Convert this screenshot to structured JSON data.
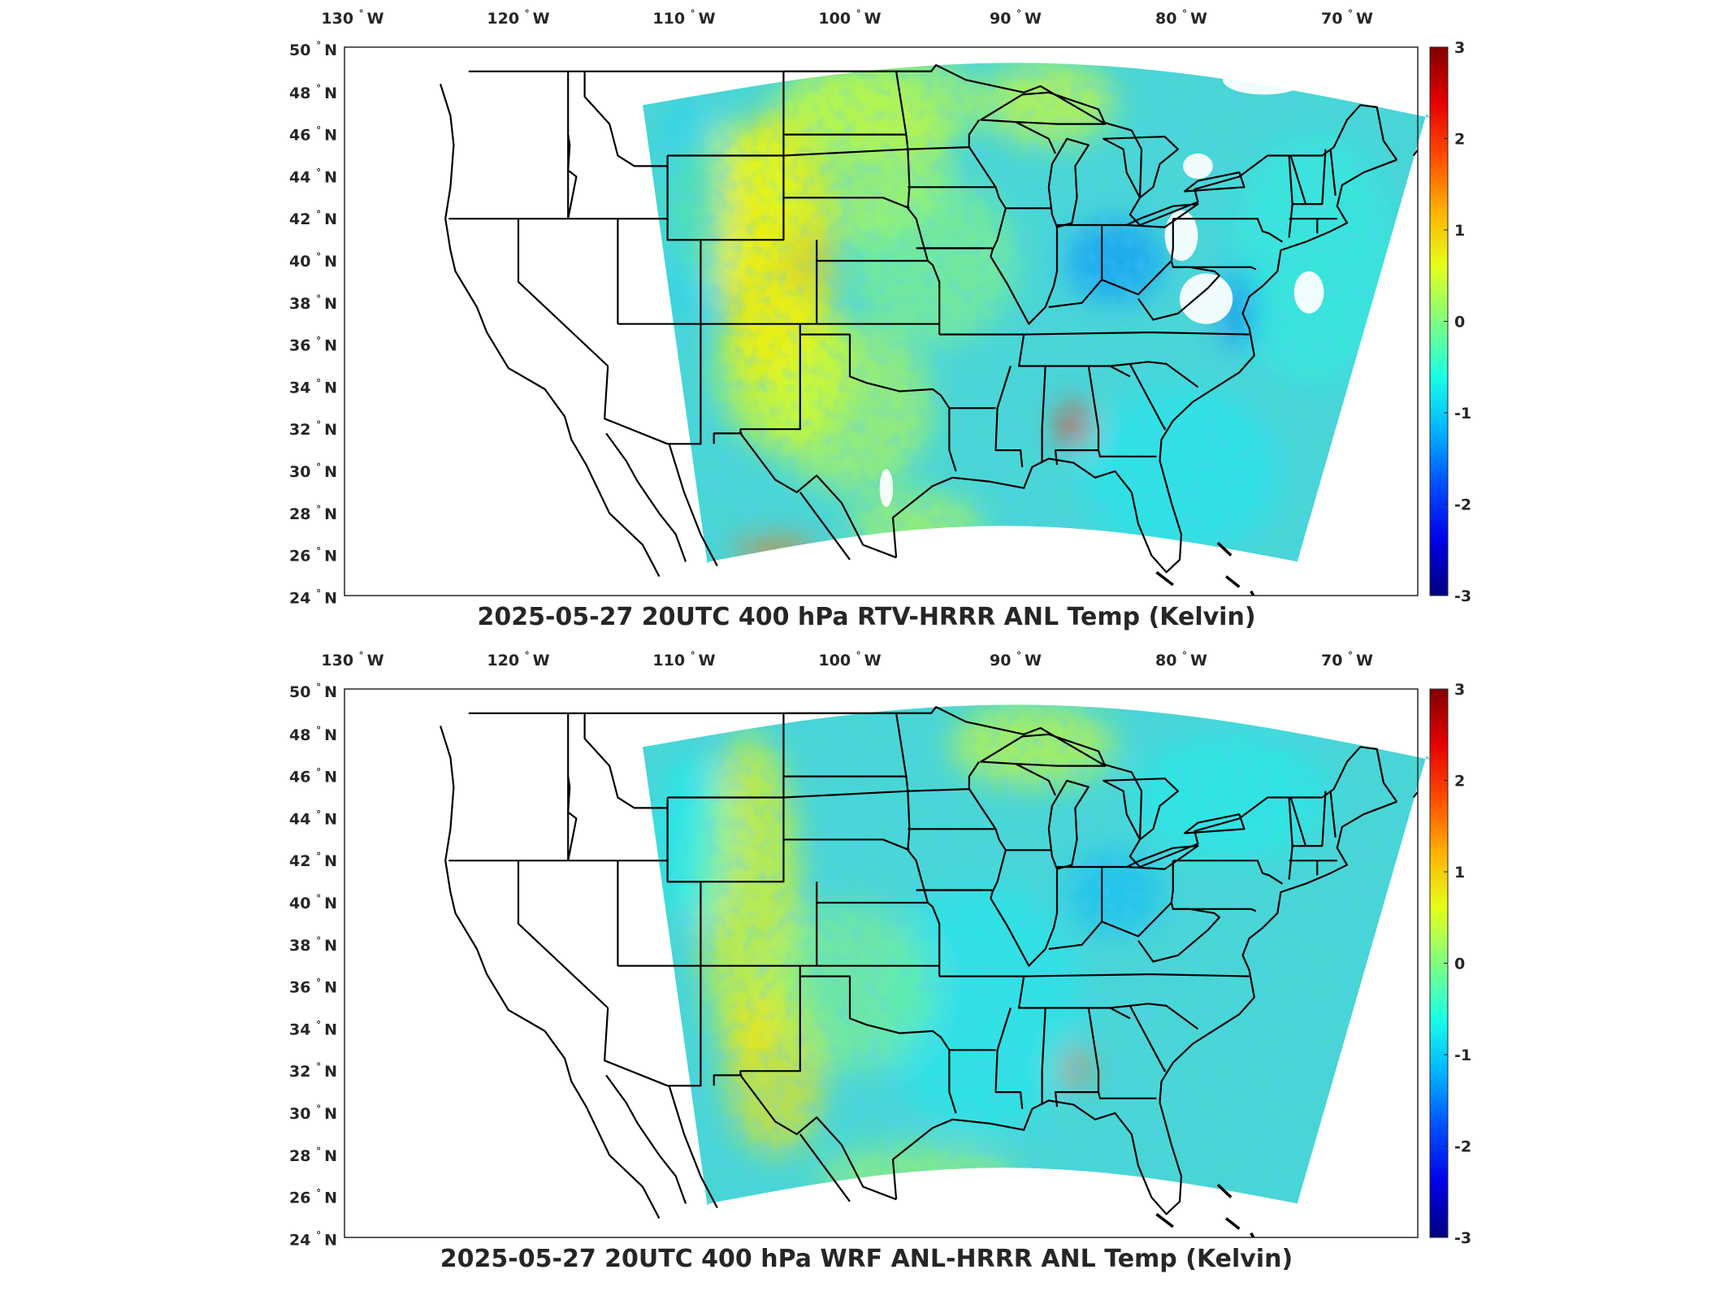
{
  "panels": [
    {
      "title": "2025-05-27 20UTC 400 hPa RTV-HRRR ANL Temp (Kelvin)",
      "variant": "rtv"
    },
    {
      "title": "2025-05-27 20UTC 400 hPa WRF ANL-HRRR ANL Temp (Kelvin)",
      "variant": "wrf"
    }
  ],
  "axes": {
    "lon_labels": [
      "130",
      "120",
      "110",
      "100",
      "90",
      "80",
      "70"
    ],
    "lon_suffix": "W",
    "lat_labels": [
      "50",
      "48",
      "46",
      "44",
      "42",
      "40",
      "38",
      "36",
      "34",
      "32",
      "30",
      "28",
      "26",
      "24"
    ],
    "lat_suffix": "N",
    "degree_symbol": "°"
  },
  "colorbar": {
    "ticks": [
      "3",
      "2",
      "1",
      "0",
      "-1",
      "-2",
      "-3"
    ],
    "min": -3,
    "max": 3,
    "colormap": "jet"
  },
  "colors": {
    "frame": "#262626",
    "background": "#ffffff",
    "field_base": "#49d6d6",
    "land_lines": "#000000"
  }
}
